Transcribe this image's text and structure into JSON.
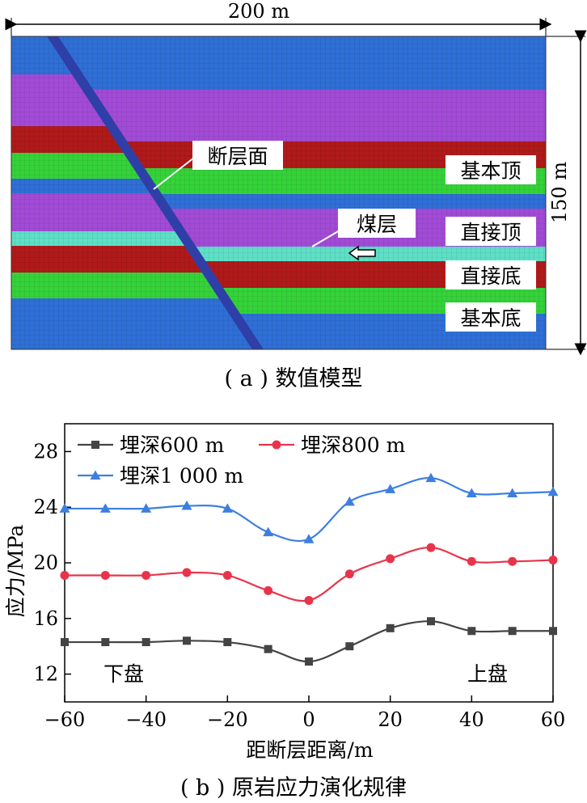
{
  "figure_a": {
    "width_label": "200 m",
    "height_label": "150 m",
    "fault_label": "断层面",
    "coal_label": "煤层",
    "layer_labels": [
      "基本顶",
      "直接顶",
      "直接底",
      "基本底"
    ],
    "caption": "( a ) 数值模型",
    "colors": {
      "blue": "#2f6fd6",
      "purple": "#a24bd6",
      "red": "#b01a1a",
      "green": "#35d23a",
      "cyan": "#5fe0c6",
      "fault": "#2f3fa8"
    }
  },
  "figure_b": {
    "caption": "( b ) 原岩应力演化规律",
    "left_label": "下盘",
    "right_label": "上盘"
  },
  "chart_data": {
    "type": "line",
    "xlabel": "距断层距离/m",
    "ylabel": "应力/MPa",
    "xlim": [
      -60,
      60
    ],
    "ylim": [
      10,
      30
    ],
    "xticks": [
      -60,
      -40,
      -20,
      0,
      20,
      40,
      60
    ],
    "yticks": [
      12,
      16,
      20,
      24,
      28
    ],
    "x": [
      -60,
      -50,
      -40,
      -30,
      -20,
      -10,
      0,
      10,
      20,
      30,
      40,
      50,
      60
    ],
    "legend_position": "top-left",
    "series": [
      {
        "name": "埋深600 m",
        "color": "#444444",
        "marker": "square",
        "values": [
          14.3,
          14.3,
          14.3,
          14.4,
          14.3,
          13.8,
          12.9,
          14.0,
          15.3,
          15.8,
          15.1,
          15.1,
          15.1
        ]
      },
      {
        "name": "埋深800 m",
        "color": "#e8344a",
        "marker": "circle",
        "values": [
          19.1,
          19.1,
          19.1,
          19.3,
          19.1,
          18.0,
          17.3,
          19.2,
          20.3,
          21.1,
          20.1,
          20.1,
          20.2
        ]
      },
      {
        "name": "埋深1 000 m",
        "color": "#3d7fe0",
        "marker": "triangle",
        "values": [
          23.9,
          23.9,
          23.9,
          24.1,
          23.9,
          22.2,
          21.7,
          24.4,
          25.3,
          26.1,
          25.0,
          25.0,
          25.1
        ]
      }
    ]
  }
}
